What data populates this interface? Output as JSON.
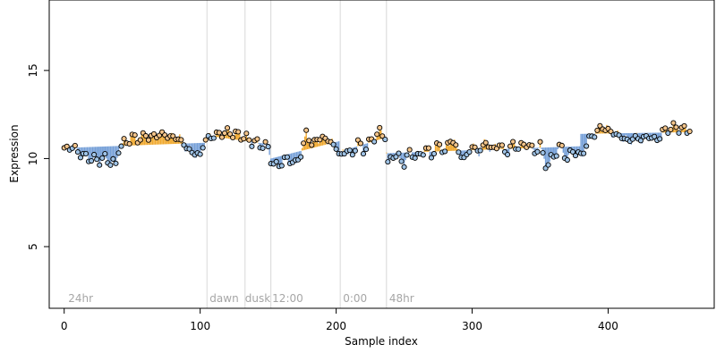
{
  "chart_data": {
    "type": "scatter",
    "title": "",
    "xlabel": "Sample index",
    "ylabel": "Expression",
    "xlim": [
      -11,
      478
    ],
    "ylim": [
      1.5,
      19
    ],
    "x_ticks": [
      0,
      100,
      200,
      300,
      400
    ],
    "y_ticks": [
      5,
      10,
      15
    ],
    "grid": false,
    "markers": [
      {
        "x": 105,
        "label": ""
      },
      {
        "x": 133,
        "label": ""
      },
      {
        "x": 152,
        "label": ""
      },
      {
        "x": 203,
        "label": ""
      },
      {
        "x": 237,
        "label": ""
      }
    ],
    "annotations": [
      {
        "x": 3,
        "label": "24hr"
      },
      {
        "x": 107,
        "label": "dawn"
      },
      {
        "x": 133,
        "label": "dusk"
      },
      {
        "x": 153,
        "label": "12:00"
      },
      {
        "x": 205,
        "label": "0:00"
      },
      {
        "x": 239,
        "label": "48hr"
      }
    ],
    "segments": [
      {
        "start": 0,
        "end": 105,
        "mean_start": 10.6,
        "mean_end": 10.9
      },
      {
        "start": 105,
        "end": 152,
        "mean_start": 11.3,
        "mean_end": 10.8
      },
      {
        "start": 152,
        "end": 203,
        "mean_start": 10.0,
        "mean_end": 11.0
      },
      {
        "start": 203,
        "end": 237,
        "mean_start": 10.4,
        "mean_end": 11.2
      },
      {
        "start": 237,
        "end": 380,
        "mean_start": 10.3,
        "mean_end": 10.7
      },
      {
        "start": 380,
        "end": 462,
        "mean_start": 11.4,
        "mean_end": 11.5
      }
    ],
    "points_anchor": [
      [
        0,
        10.5
      ],
      [
        5,
        10.7
      ],
      [
        10,
        10.4
      ],
      [
        15,
        10.1
      ],
      [
        20,
        10.0
      ],
      [
        25,
        9.9
      ],
      [
        30,
        10.0
      ],
      [
        35,
        9.8
      ],
      [
        38,
        9.6
      ],
      [
        40,
        10.6
      ],
      [
        45,
        10.9
      ],
      [
        50,
        11.2
      ],
      [
        55,
        11.1
      ],
      [
        60,
        11.3
      ],
      [
        65,
        11.2
      ],
      [
        70,
        11.4
      ],
      [
        75,
        11.3
      ],
      [
        80,
        11.2
      ],
      [
        85,
        11.1
      ],
      [
        90,
        10.6
      ],
      [
        95,
        10.3
      ],
      [
        100,
        10.2
      ],
      [
        103,
        11.0
      ],
      [
        105,
        11.1
      ],
      [
        110,
        11.3
      ],
      [
        115,
        11.4
      ],
      [
        120,
        11.5
      ],
      [
        125,
        11.4
      ],
      [
        130,
        11.3
      ],
      [
        135,
        11.1
      ],
      [
        140,
        10.9
      ],
      [
        145,
        10.8
      ],
      [
        150,
        10.6
      ],
      [
        152,
        10.0
      ],
      [
        155,
        9.5
      ],
      [
        160,
        9.8
      ],
      [
        165,
        10.0
      ],
      [
        170,
        9.7
      ],
      [
        175,
        10.4
      ],
      [
        178,
        11.5
      ],
      [
        182,
        10.8
      ],
      [
        186,
        11.1
      ],
      [
        190,
        11.2
      ],
      [
        195,
        11.0
      ],
      [
        200,
        10.6
      ],
      [
        203,
        10.1
      ],
      [
        208,
        10.5
      ],
      [
        212,
        10.2
      ],
      [
        216,
        11.0
      ],
      [
        220,
        10.4
      ],
      [
        224,
        10.9
      ],
      [
        228,
        11.2
      ],
      [
        232,
        11.5
      ],
      [
        236,
        11.3
      ],
      [
        238,
        9.6
      ],
      [
        242,
        10.3
      ],
      [
        246,
        10.0
      ],
      [
        250,
        9.8
      ],
      [
        255,
        10.4
      ],
      [
        260,
        10.0
      ],
      [
        265,
        10.6
      ],
      [
        270,
        10.2
      ],
      [
        275,
        10.8
      ],
      [
        280,
        10.4
      ],
      [
        285,
        11.2
      ],
      [
        290,
        10.3
      ],
      [
        295,
        10.0
      ],
      [
        300,
        10.7
      ],
      [
        305,
        10.4
      ],
      [
        310,
        10.9
      ],
      [
        315,
        10.5
      ],
      [
        320,
        10.8
      ],
      [
        325,
        10.3
      ],
      [
        330,
        10.8
      ],
      [
        335,
        10.6
      ],
      [
        340,
        10.9
      ],
      [
        345,
        10.4
      ],
      [
        350,
        10.7
      ],
      [
        355,
        9.5
      ],
      [
        360,
        10.2
      ],
      [
        365,
        10.7
      ],
      [
        370,
        10.0
      ],
      [
        375,
        10.5
      ],
      [
        380,
        10.1
      ],
      [
        385,
        11.0
      ],
      [
        390,
        11.4
      ],
      [
        395,
        11.8
      ],
      [
        400,
        11.6
      ],
      [
        405,
        11.4
      ],
      [
        410,
        11.2
      ],
      [
        415,
        11.0
      ],
      [
        420,
        11.2
      ],
      [
        425,
        11.1
      ],
      [
        430,
        11.3
      ],
      [
        435,
        11.0
      ],
      [
        440,
        11.5
      ],
      [
        445,
        11.7
      ],
      [
        450,
        11.8
      ],
      [
        455,
        11.6
      ],
      [
        460,
        11.7
      ]
    ]
  },
  "colors": {
    "above_mean": "#f0a92f",
    "below_mean": "#76a0d8",
    "point_fill_above": "#f3c48a",
    "point_fill_below": "#9fc3e6",
    "point_edge": "#000000",
    "marker_line": "#d8d8d8",
    "annotation": "#a6a6a6"
  }
}
